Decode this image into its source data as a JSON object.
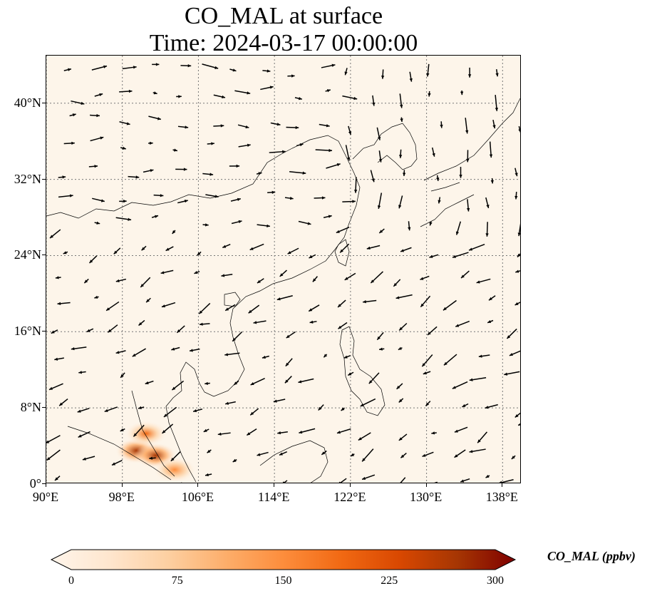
{
  "title": {
    "line1": "CO_MAL at surface",
    "line2": "Time: 2024-03-17 00:00:00"
  },
  "map": {
    "lon_range": [
      90,
      140
    ],
    "lat_range": [
      0,
      45
    ],
    "lat_ticks": [
      {
        "value": 0,
        "label": "0°"
      },
      {
        "value": 8,
        "label": "8°N"
      },
      {
        "value": 16,
        "label": "16°N"
      },
      {
        "value": 24,
        "label": "24°N"
      },
      {
        "value": 32,
        "label": "32°N"
      },
      {
        "value": 40,
        "label": "40°N"
      }
    ],
    "lon_ticks": [
      {
        "value": 90,
        "label": "90°E"
      },
      {
        "value": 98,
        "label": "98°E"
      },
      {
        "value": 106,
        "label": "106°E"
      },
      {
        "value": 114,
        "label": "114°E"
      },
      {
        "value": 122,
        "label": "122°E"
      },
      {
        "value": 130,
        "label": "130°E"
      },
      {
        "value": 138,
        "label": "138°E"
      }
    ],
    "gridlines": true,
    "background_color": "#fdf5ea",
    "wind_arrows": "quiver field of surface wind vectors (black arrows)"
  },
  "colorbar": {
    "label": "CO_MAL (ppbv)",
    "min": 0,
    "max": 300,
    "ticks": [
      "0",
      "75",
      "150",
      "225",
      "300"
    ],
    "colormap": [
      "#fff5eb",
      "#fee6ce",
      "#fdd0a2",
      "#fdae6b",
      "#fd8d3c",
      "#f16913",
      "#d94801",
      "#a63603",
      "#7f0000"
    ],
    "extend": "both"
  },
  "chart_data": {
    "type": "heatmap",
    "title": "CO_MAL at surface",
    "subtitle": "Time: 2024-03-17 00:00:00",
    "xlabel": "",
    "ylabel": "",
    "xlim": [
      90,
      140
    ],
    "ylim": [
      0,
      45
    ],
    "colorbar_range": [
      0,
      300
    ],
    "hotspots": [
      {
        "lon": 99.5,
        "lat": 3.5,
        "value": 250
      },
      {
        "lon": 101.5,
        "lat": 3.0,
        "value": 280
      },
      {
        "lon": 100.5,
        "lat": 5.3,
        "value": 200
      },
      {
        "lon": 103.5,
        "lat": 1.5,
        "value": 150
      }
    ],
    "background_value": 0
  }
}
